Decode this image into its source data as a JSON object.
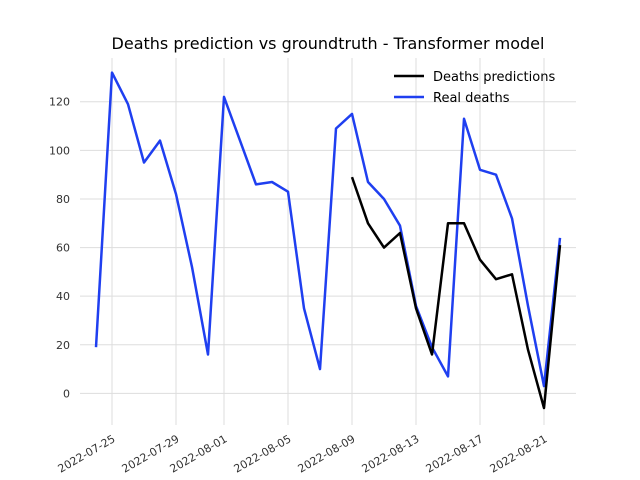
{
  "chart_data": {
    "type": "line",
    "title": "Deaths prediction vs groundtruth - Transformer model",
    "xlabel": "",
    "ylabel": "",
    "grid": true,
    "legend_position": "top-right",
    "x_range": [
      "2022-07-23",
      "2022-08-23"
    ],
    "ylim": [
      -13,
      138
    ],
    "x_ticks": [
      "2022-07-25",
      "2022-07-29",
      "2022-08-01",
      "2022-08-05",
      "2022-08-09",
      "2022-08-13",
      "2022-08-17",
      "2022-08-21"
    ],
    "y_ticks": [
      0,
      20,
      40,
      60,
      80,
      100,
      120
    ],
    "series": [
      {
        "name": "Deaths predictions",
        "color": "#000000",
        "points": [
          [
            "2022-08-09",
            89
          ],
          [
            "2022-08-10",
            70
          ],
          [
            "2022-08-11",
            60
          ],
          [
            "2022-08-12",
            66
          ],
          [
            "2022-08-13",
            35
          ],
          [
            "2022-08-14",
            16
          ],
          [
            "2022-08-15",
            70
          ],
          [
            "2022-08-16",
            70
          ],
          [
            "2022-08-17",
            55
          ],
          [
            "2022-08-18",
            47
          ],
          [
            "2022-08-19",
            49
          ],
          [
            "2022-08-20",
            18
          ],
          [
            "2022-08-21",
            -6
          ],
          [
            "2022-08-22",
            61
          ]
        ]
      },
      {
        "name": "Real deaths",
        "color": "#1f3ff0",
        "points": [
          [
            "2022-07-24",
            19
          ],
          [
            "2022-07-25",
            132
          ],
          [
            "2022-07-26",
            119
          ],
          [
            "2022-07-27",
            95
          ],
          [
            "2022-07-28",
            104
          ],
          [
            "2022-07-29",
            82
          ],
          [
            "2022-07-30",
            52
          ],
          [
            "2022-07-31",
            16
          ],
          [
            "2022-08-01",
            122
          ],
          [
            "2022-08-02",
            104
          ],
          [
            "2022-08-03",
            86
          ],
          [
            "2022-08-04",
            87
          ],
          [
            "2022-08-05",
            83
          ],
          [
            "2022-08-06",
            35
          ],
          [
            "2022-08-07",
            10
          ],
          [
            "2022-08-08",
            109
          ],
          [
            "2022-08-09",
            115
          ],
          [
            "2022-08-10",
            87
          ],
          [
            "2022-08-11",
            80
          ],
          [
            "2022-08-12",
            69
          ],
          [
            "2022-08-13",
            36
          ],
          [
            "2022-08-14",
            19
          ],
          [
            "2022-08-15",
            7
          ],
          [
            "2022-08-16",
            113
          ],
          [
            "2022-08-17",
            92
          ],
          [
            "2022-08-18",
            90
          ],
          [
            "2022-08-19",
            72
          ],
          [
            "2022-08-20",
            36
          ],
          [
            "2022-08-21",
            3
          ],
          [
            "2022-08-22",
            64
          ]
        ]
      }
    ]
  }
}
